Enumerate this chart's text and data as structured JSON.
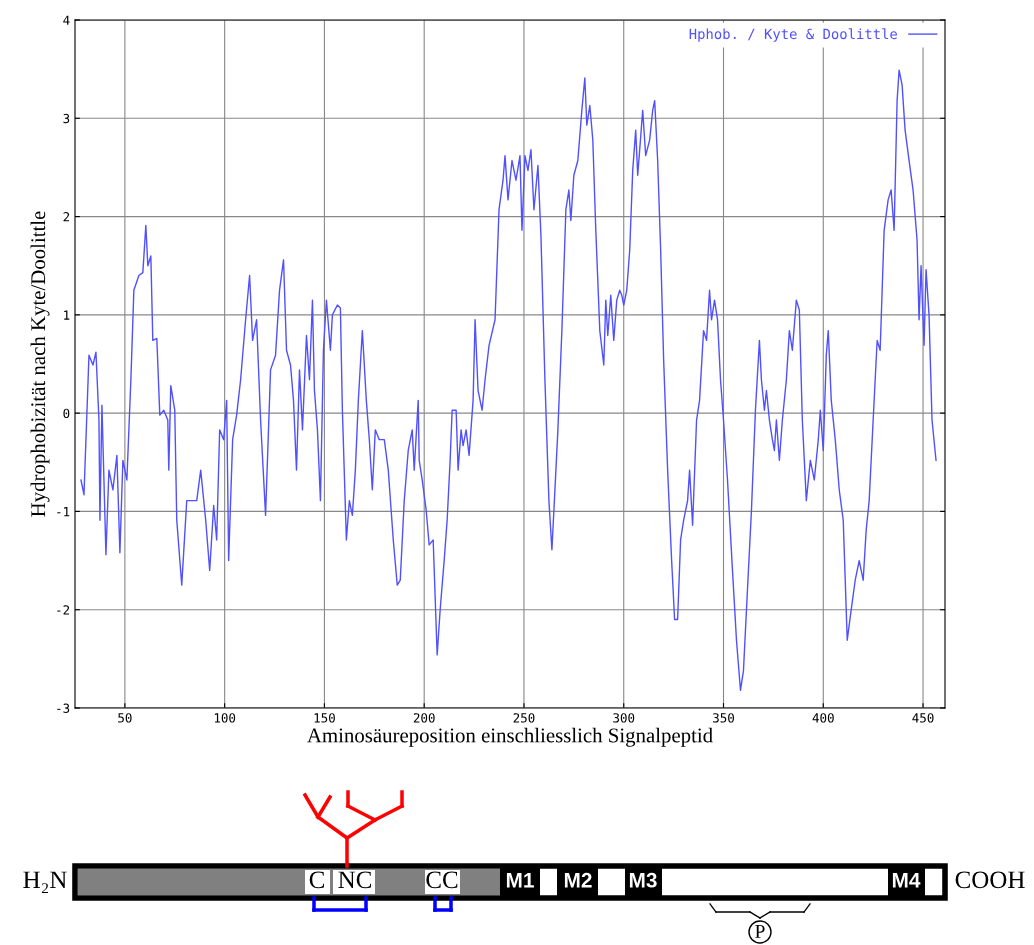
{
  "chart_data": {
    "type": "line",
    "xlabel": "Aminosäureposition einschliesslich Signalpeptid",
    "ylabel": "Hydrophobizität nach Kyte/Doolittle",
    "xlim": [
      25,
      461
    ],
    "ylim": [
      -3,
      4
    ],
    "xticks": [
      50,
      100,
      150,
      200,
      250,
      300,
      350,
      400,
      450
    ],
    "yticks": [
      -3,
      -2,
      -1,
      0,
      1,
      2,
      3,
      4
    ],
    "grid": true,
    "legend": "top right",
    "series": [
      {
        "name": "Hphob. / Kyte & Doolittle",
        "color": "#5050ff",
        "x": [
          28,
          29.5,
          32,
          34,
          35.5,
          37,
          37.5,
          38.5,
          40.5,
          42,
          44,
          46,
          47.5,
          49,
          51,
          53,
          54.5,
          57,
          59,
          60.5,
          61.5,
          63,
          64,
          66,
          67.5,
          69.5,
          71.5,
          72,
          73,
          75,
          76,
          78.5,
          81,
          86,
          88,
          90.5,
          92.5,
          94.5,
          96,
          97.5,
          99.5,
          101,
          102,
          104,
          106,
          108,
          110.5,
          112.5,
          114,
          116,
          118,
          120.5,
          123,
          125.5,
          127.5,
          129.5,
          131,
          133,
          134.5,
          136,
          137.5,
          139,
          141,
          142.5,
          144,
          145,
          146.5,
          148,
          149.5,
          151,
          153,
          154,
          156.5,
          158,
          159,
          161,
          162.5,
          164,
          165.5,
          167,
          169,
          171,
          172.5,
          174,
          175.5,
          177.5,
          180,
          182,
          184.5,
          186.5,
          188,
          190,
          192,
          194,
          195,
          197,
          197.5,
          199,
          201,
          202.5,
          204.5,
          206.5,
          208,
          210,
          211.5,
          213,
          214,
          216,
          217,
          218.5,
          219.5,
          221,
          222.5,
          224.5,
          225.5,
          227,
          229,
          230.5,
          232.5,
          235.5,
          237.5,
          239.5,
          240.5,
          242,
          244,
          246,
          248,
          249,
          250.5,
          252,
          253.5,
          255,
          257,
          258.5,
          260.5,
          262.5,
          264,
          265,
          267,
          269,
          271,
          272.5,
          273.5,
          275,
          277,
          279,
          280.5,
          281.5,
          283,
          284.5,
          286,
          288,
          290,
          291,
          292,
          293.5,
          295,
          296.5,
          298,
          299,
          300,
          301.5,
          303,
          304.5,
          306,
          307,
          308,
          309.5,
          311,
          313,
          314.5,
          315.5,
          317,
          318.5,
          320,
          322,
          324,
          325.5,
          327,
          328.5,
          330,
          332,
          333,
          334.5,
          336.5,
          338,
          340,
          341.5,
          343,
          344,
          345.5,
          347,
          348.5,
          350,
          352,
          354.5,
          356.5,
          358.5,
          360,
          362,
          364,
          366,
          368,
          369,
          370.5,
          371.5,
          373,
          374.5,
          375.5,
          376.5,
          378,
          379.5,
          381.5,
          383,
          384.5,
          386.5,
          388,
          389.5,
          391.5,
          393.5,
          395.5,
          397.5,
          398.5,
          400,
          401.5,
          402.5,
          404,
          406,
          408,
          410,
          412,
          414,
          416,
          418,
          420,
          421.5,
          423,
          425,
          427,
          428.5,
          430.5,
          432.5,
          434,
          435.5,
          437,
          438,
          439.5,
          441,
          443,
          445,
          447,
          448,
          449,
          450.5,
          451.5,
          453,
          454.5,
          456.5
        ],
        "values": [
          -0.68,
          -0.83,
          0.59,
          0.49,
          0.62,
          -0.07,
          -1.09,
          0.08,
          -1.44,
          -0.58,
          -0.78,
          -0.43,
          -1.42,
          -0.48,
          -0.68,
          0.34,
          1.25,
          1.4,
          1.43,
          1.91,
          1.5,
          1.6,
          0.74,
          0.76,
          -0.02,
          0.03,
          -0.07,
          -0.58,
          0.28,
          0.03,
          -1.09,
          -1.75,
          -0.89,
          -0.89,
          -0.58,
          -1.09,
          -1.6,
          -0.94,
          -1.29,
          -0.17,
          -0.27,
          0.13,
          -1.5,
          -0.27,
          -0.02,
          0.34,
          0.95,
          1.4,
          0.74,
          0.95,
          -0.07,
          -1.04,
          0.44,
          0.59,
          1.25,
          1.56,
          0.64,
          0.49,
          0.13,
          -0.58,
          0.44,
          -0.17,
          0.79,
          0.34,
          1.15,
          0.23,
          -0.17,
          -0.89,
          0.64,
          1.15,
          0.64,
          1.0,
          1.1,
          1.07,
          0.03,
          -1.29,
          -0.89,
          -1.04,
          -0.58,
          0.13,
          0.84,
          0.13,
          -0.27,
          -0.78,
          -0.17,
          -0.27,
          -0.27,
          -0.58,
          -1.29,
          -1.75,
          -1.7,
          -0.89,
          -0.38,
          -0.17,
          -0.58,
          0.13,
          -0.48,
          -0.68,
          -0.99,
          -1.34,
          -1.29,
          -2.46,
          -2.0,
          -1.5,
          -1.09,
          -0.48,
          0.03,
          0.03,
          -0.58,
          -0.17,
          -0.33,
          -0.17,
          -0.43,
          0.13,
          0.95,
          0.23,
          0.03,
          0.34,
          0.69,
          0.95,
          2.07,
          2.37,
          2.62,
          2.17,
          2.57,
          2.37,
          2.62,
          1.86,
          2.62,
          2.47,
          2.68,
          2.07,
          2.52,
          1.81,
          0.34,
          -0.89,
          -1.39,
          -0.99,
          -0.17,
          0.84,
          2.07,
          2.27,
          1.96,
          2.42,
          2.57,
          3.08,
          3.41,
          2.93,
          3.13,
          2.78,
          1.86,
          0.84,
          0.49,
          1.15,
          0.79,
          1.2,
          0.74,
          1.15,
          1.25,
          1.2,
          1.1,
          1.25,
          1.66,
          2.47,
          2.88,
          2.42,
          2.68,
          3.08,
          2.62,
          2.78,
          3.08,
          3.18,
          2.57,
          1.66,
          0.54,
          -0.58,
          -1.5,
          -2.1,
          -2.1,
          -1.29,
          -1.09,
          -0.89,
          -0.58,
          -1.14,
          -0.07,
          0.13,
          0.84,
          0.74,
          1.25,
          0.95,
          1.15,
          0.95,
          0.34,
          -0.07,
          -0.68,
          -1.6,
          -2.31,
          -2.82,
          -2.62,
          -1.8,
          -0.99,
          0.03,
          0.74,
          0.34,
          0.03,
          0.23,
          -0.07,
          -0.27,
          -0.38,
          -0.07,
          -0.48,
          -0.07,
          0.34,
          0.84,
          0.64,
          1.15,
          1.05,
          -0.07,
          -0.89,
          -0.48,
          -0.68,
          -0.27,
          0.03,
          -0.38,
          0.59,
          0.84,
          0.13,
          -0.27,
          -0.78,
          -1.09,
          -2.31,
          -2.0,
          -1.7,
          -1.5,
          -1.7,
          -1.19,
          -0.89,
          -0.07,
          0.74,
          0.64,
          1.86,
          2.17,
          2.27,
          1.86,
          3.18,
          3.49,
          3.34,
          2.88,
          2.57,
          2.27,
          1.76,
          0.95,
          1.5,
          0.69,
          1.46,
          1.0,
          -0.07,
          -0.48
        ]
      }
    ],
    "annotations": [
      "H₂N",
      "C",
      "NC",
      "CC",
      "M1",
      "M2",
      "M3",
      "M4",
      "COOH",
      "P"
    ]
  }
}
